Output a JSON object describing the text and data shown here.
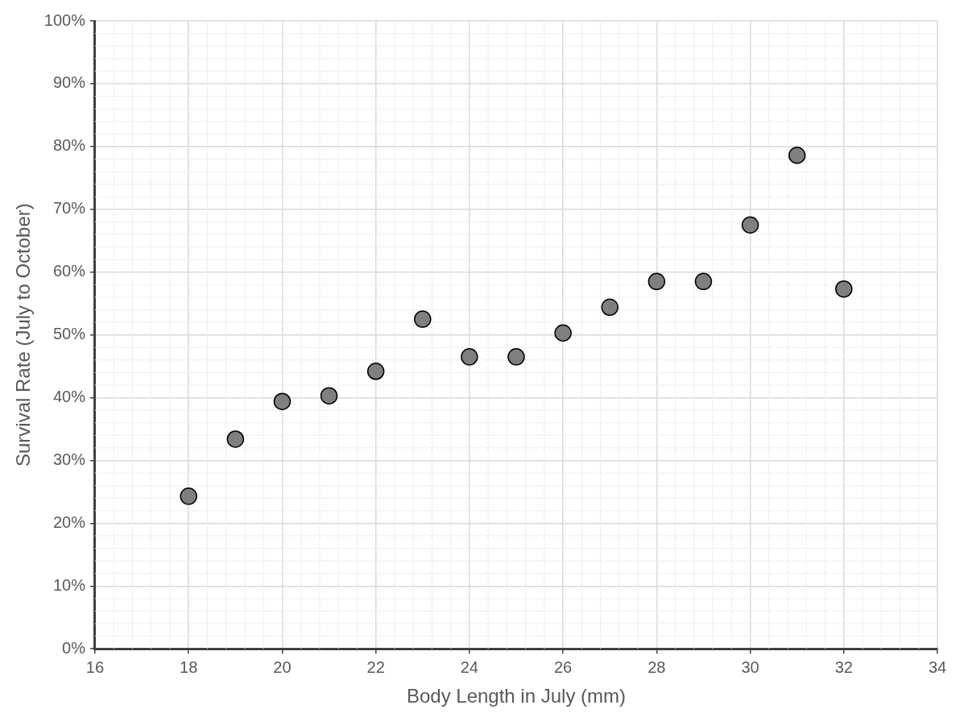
{
  "chart_data": {
    "type": "scatter",
    "xlabel": "Body Length in July (mm)",
    "ylabel": "Survival Rate (July to October)",
    "x": [
      18,
      19,
      20,
      21,
      22,
      23,
      24,
      25,
      26,
      27,
      28,
      29,
      30,
      31,
      32
    ],
    "series": [
      {
        "color": "#7f7f7f",
        "values": [
          24.3,
          33.4,
          39.4,
          40.3,
          44.2,
          52.5,
          46.5,
          46.5,
          50.3,
          54.4,
          58.5,
          58.5,
          67.5,
          78.6,
          57.3
        ]
      }
    ],
    "xlim": [
      16,
      34
    ],
    "xticks": [
      16,
      18,
      20,
      22,
      24,
      26,
      28,
      30,
      32,
      34
    ],
    "ylim": [
      0,
      100
    ],
    "yticks": [
      {
        "value": 0,
        "label": "0%"
      },
      {
        "value": 10,
        "label": "10%"
      },
      {
        "value": 20,
        "label": "20%"
      },
      {
        "value": 30,
        "label": "30%"
      },
      {
        "value": 40,
        "label": "40%"
      },
      {
        "value": 50,
        "label": "50%"
      },
      {
        "value": 60,
        "label": "60%"
      },
      {
        "value": 70,
        "label": "70%"
      },
      {
        "value": 80,
        "label": "80%"
      },
      {
        "value": 90,
        "label": "90%"
      },
      {
        "value": 100,
        "label": "100%"
      }
    ],
    "grid": true,
    "marker": "circle"
  }
}
